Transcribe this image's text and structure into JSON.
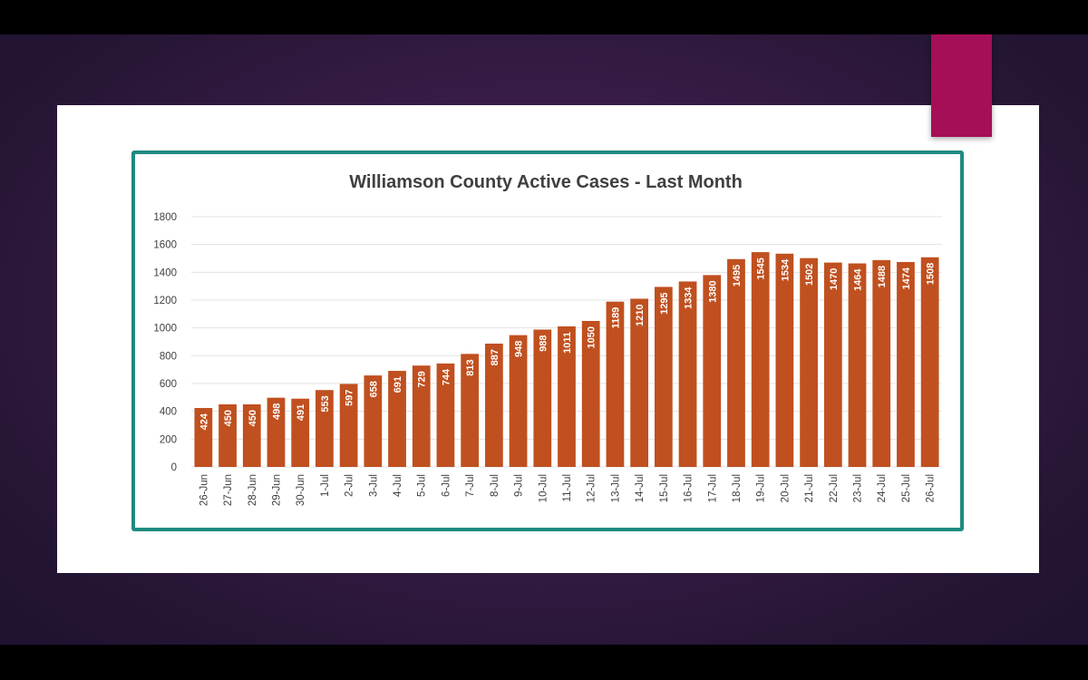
{
  "colors": {
    "bar": "#c0501f",
    "frame": "#1e8a80",
    "accent": "#a50f57",
    "background": "#3a1d48"
  },
  "chart_data": {
    "type": "bar",
    "title": "Williamson County Active Cases - Last Month",
    "xlabel": "",
    "ylabel": "",
    "ylim": [
      0,
      1800
    ],
    "yticks": [
      0,
      200,
      400,
      600,
      800,
      1000,
      1200,
      1400,
      1600,
      1800
    ],
    "grid": true,
    "data_labels": true,
    "categories": [
      "26-Jun",
      "27-Jun",
      "28-Jun",
      "29-Jun",
      "30-Jun",
      "1-Jul",
      "2-Jul",
      "3-Jul",
      "4-Jul",
      "5-Jul",
      "6-Jul",
      "7-Jul",
      "8-Jul",
      "9-Jul",
      "10-Jul",
      "11-Jul",
      "12-Jul",
      "13-Jul",
      "14-Jul",
      "15-Jul",
      "16-Jul",
      "17-Jul",
      "18-Jul",
      "19-Jul",
      "20-Jul",
      "21-Jul",
      "22-Jul",
      "23-Jul",
      "24-Jul",
      "25-Jul",
      "26-Jul"
    ],
    "values": [
      424,
      450,
      450,
      498,
      491,
      553,
      597,
      658,
      691,
      729,
      744,
      813,
      887,
      948,
      988,
      1011,
      1050,
      1189,
      1210,
      1295,
      1334,
      1380,
      1495,
      1545,
      1534,
      1502,
      1470,
      1464,
      1488,
      1474,
      1508
    ]
  }
}
